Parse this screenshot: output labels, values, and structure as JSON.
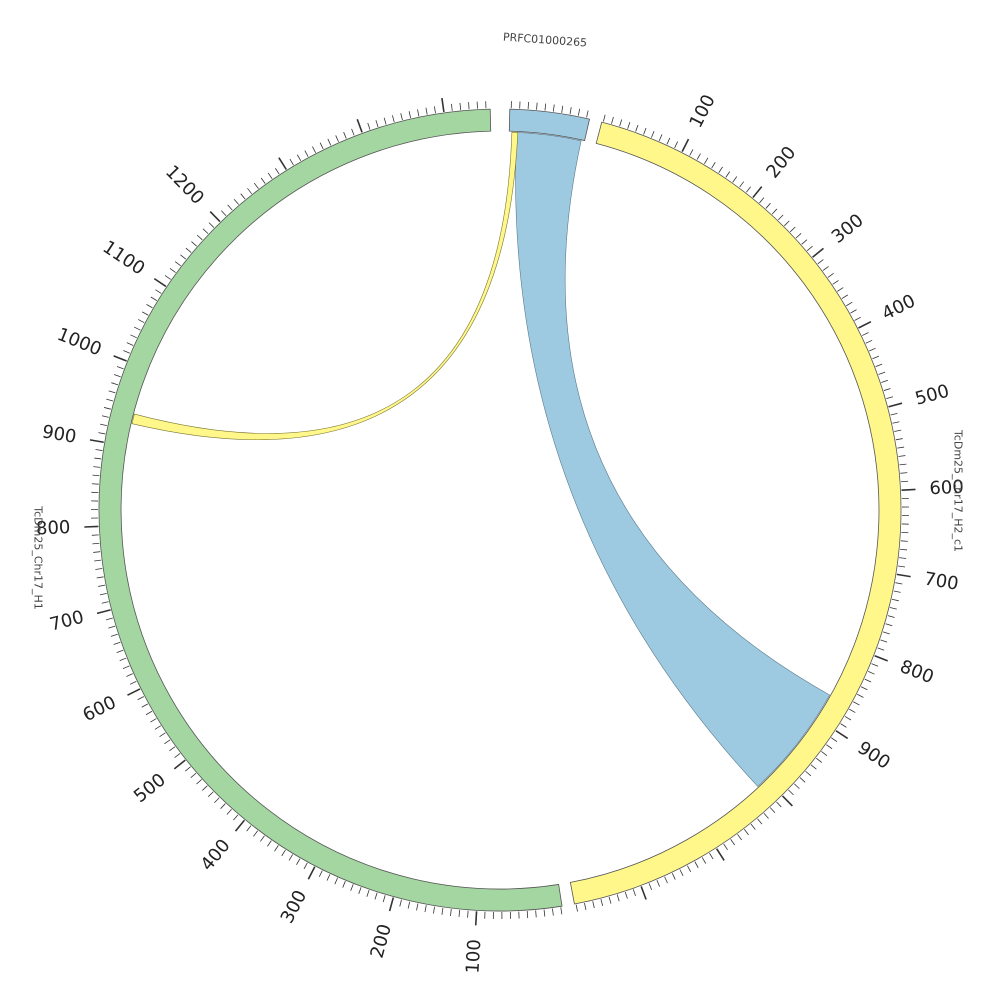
{
  "chart_data": {
    "type": "chord",
    "segments": [
      {
        "name": "PRFC01000265",
        "color": "#9ecae1",
        "tick_labels": []
      },
      {
        "name": "TcDm25_Chr17_H2_c1",
        "color": "#fff78a",
        "tick_labels": [
          "100",
          "200",
          "300",
          "400",
          "500",
          "600",
          "700",
          "800",
          "900"
        ]
      },
      {
        "name": "TcDm25_Chr17_H1",
        "color": "#a3d6a1",
        "tick_labels": [
          "100",
          "200",
          "300",
          "400",
          "500",
          "600",
          "700",
          "800",
          "900",
          "1000",
          "1100",
          "1200"
        ]
      }
    ],
    "links": [
      {
        "from_segment": "PRFC01000265",
        "to_segment": "TcDm25_Chr17_H2_c1",
        "color": "#9ecae1"
      },
      {
        "from_segment": "PRFC01000265",
        "to_segment": "TcDm25_Chr17_H1",
        "color": "#fff78a"
      }
    ]
  }
}
